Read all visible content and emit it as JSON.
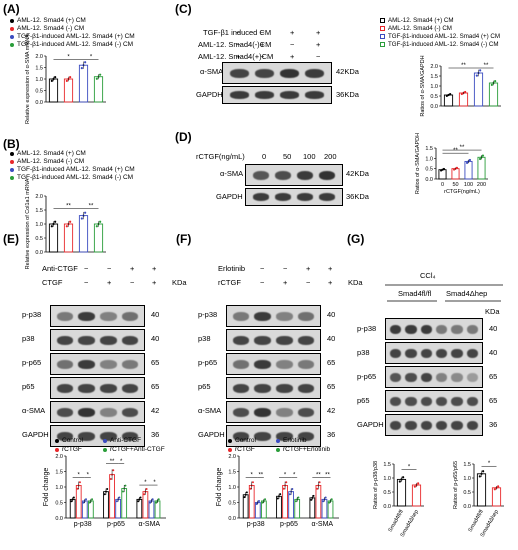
{
  "panels": {
    "A": {
      "label": "(A)",
      "legend": [
        "AML-12. Smad4 (+) CM",
        "AML-12. Smad4 (-) CM",
        "TGF-β1-induced AML-12. Smad4 (+) CM",
        "TGF-β1-induced AML-12. Smad4 (-) CM"
      ],
      "ylabel": "Relative expression of α-SMA mRNA",
      "yticks": [
        "0.0",
        "0.5",
        "1.0",
        "1.5",
        "2.0"
      ],
      "sig": [
        "*",
        "*"
      ]
    },
    "B": {
      "label": "(B)",
      "legend": [
        "AML-12. Smad4 (+) CM",
        "AML-12. Smad4 (-) CM",
        "TGF-β1-induced AML-12. Smad4 (+) CM",
        "TGF-β1-induced AML-12. Smad4 (-) CM"
      ],
      "ylabel": "Relative expression of Col1a1 mRNA",
      "yticks": [
        "0.0",
        "0.5",
        "1.0",
        "1.5",
        "2.0"
      ],
      "sig": [
        "**",
        "**"
      ]
    },
    "C": {
      "label": "(C)",
      "rows": [
        "TGF-β1 induced CM",
        "AML-12. Smad4(-)CM",
        "AML-12. Smad4(+)CM"
      ],
      "signs": [
        [
          "−",
          "−",
          "+",
          "+"
        ],
        [
          "−",
          "+",
          "−",
          "+"
        ],
        [
          "+",
          "−",
          "+",
          "−"
        ]
      ],
      "blots": [
        "α-SMA",
        "GAPDH"
      ],
      "kda": [
        "42KDa",
        "36KDa"
      ],
      "legend": [
        "AML-12. Smad4 (+) CM",
        "AML-12. Smad4 (-) CM",
        "TGF-β1-induced AML-12. Smad4 (+) CM",
        "TGF-β1-induced AML-12. Smad4 (-) CM"
      ],
      "ylabel": "Ratios of α-SMA/GAPDH",
      "yticks": [
        "0.0",
        "0.5",
        "1.0",
        "1.5",
        "2.0"
      ],
      "sig": [
        "**",
        "**"
      ]
    },
    "D": {
      "label": "(D)",
      "row": "rCTGF(ng/mL)",
      "doses": [
        "0",
        "50",
        "100",
        "200"
      ],
      "blots": [
        "α-SMA",
        "GAPDH"
      ],
      "kda": [
        "42KDa",
        "36KDa"
      ],
      "ylabel": "Ratios of α-SMA/GAPDH",
      "yticks": [
        "0.0",
        "0.5",
        "1.0",
        "1.5"
      ],
      "xticks": [
        "0",
        "50",
        "100",
        "200"
      ],
      "xlabel": "rCTGF(ng/mL)",
      "sig": [
        "**",
        "**"
      ]
    },
    "E": {
      "label": "(E)",
      "rows": [
        "Anti-CTGF",
        "CTGF"
      ],
      "signs": [
        [
          "−",
          "−",
          "+",
          "+"
        ],
        [
          "−",
          "+",
          "−",
          "+"
        ]
      ],
      "kda_head": "KDa",
      "blots": [
        "p-p38",
        "p38",
        "p-p65",
        "p65",
        "α-SMA",
        "GAPDH"
      ],
      "kda": [
        "40",
        "40",
        "65",
        "65",
        "42",
        "36"
      ],
      "legend": [
        "Control",
        "Anti-CTGF",
        "rCTGF",
        "rCTGF+Anti-CTGF"
      ],
      "ylabel": "Fold change",
      "yticks": [
        "0.0",
        "0.5",
        "1.0",
        "1.5",
        "2.0"
      ],
      "groups": [
        "p-p38",
        "p-p65",
        "α-SMA"
      ],
      "sig": [
        "*",
        "*",
        "**",
        "*",
        "*",
        "*"
      ]
    },
    "F": {
      "label": "(F)",
      "rows": [
        "Erlotinib",
        "rCTGF"
      ],
      "signs": [
        [
          "−",
          "−",
          "+",
          "+"
        ],
        [
          "−",
          "+",
          "−",
          "+"
        ]
      ],
      "kda_head": "KDa",
      "blots": [
        "p-p38",
        "p38",
        "p-p65",
        "p65",
        "α-SMA",
        "GAPDH"
      ],
      "kda": [
        "40",
        "40",
        "65",
        "65",
        "42",
        "36"
      ],
      "legend": [
        "Control",
        "Erlotinib",
        "rCTGF",
        "rCTGF+Erlotinib"
      ],
      "ylabel": "Fold change",
      "yticks": [
        "0.0",
        "0.5",
        "1.0",
        "1.5",
        "2.0"
      ],
      "groups": [
        "p-p38",
        "p-p65",
        "α-SMA"
      ],
      "sig": [
        "*",
        "**",
        "*",
        "*",
        "**",
        "**"
      ]
    },
    "G": {
      "label": "(G)",
      "treatment": "CCl₄",
      "genotypes": [
        "Smad4fl/fl",
        "Smad4Δhep"
      ],
      "kda_head": "KDa",
      "blots": [
        "p-p38",
        "p38",
        "p-p65",
        "p65",
        "GAPDH"
      ],
      "kda": [
        "40",
        "40",
        "65",
        "65",
        "36"
      ],
      "ylabel1": "Ratios of p-p38/p38",
      "ylabel2": "Ratios of p-p65/p65",
      "yticks1": [
        "0.0",
        "0.5",
        "1.0",
        "1.5"
      ],
      "yticks2": [
        "0.0",
        "0.5",
        "1.0",
        "1.5"
      ],
      "xticks": [
        "Smad4fl/fl",
        "Smad4Δhep"
      ],
      "sig": [
        "*",
        "*"
      ]
    }
  },
  "colors": {
    "black": "#000000",
    "red": "#e8282b",
    "blue": "#3b4cc0",
    "green": "#2a9d3a"
  },
  "chart_data": [
    {
      "panel": "A",
      "type": "bar",
      "categories": [
        "AML-12. Smad4 (+) CM",
        "AML-12. Smad4 (-) CM",
        "TGF-β1-induced AML-12. Smad4 (+) CM",
        "TGF-β1-induced AML-12. Smad4 (-) CM"
      ],
      "values": [
        1.0,
        1.0,
        1.6,
        1.1
      ],
      "ylim": [
        0,
        2.0
      ]
    },
    {
      "panel": "B",
      "type": "bar",
      "categories": [
        "AML-12. Smad4 (+) CM",
        "AML-12. Smad4 (-) CM",
        "TGF-β1-induced AML-12. Smad4 (+) CM",
        "TGF-β1-induced AML-12. Smad4 (-) CM"
      ],
      "values": [
        1.0,
        1.0,
        1.3,
        1.0
      ],
      "ylim": [
        0,
        2.0
      ]
    },
    {
      "panel": "C",
      "type": "bar",
      "categories": [
        "AML-12. Smad4 (+) CM",
        "AML-12. Smad4 (-) CM",
        "TGF-β1-induced AML-12. Smad4 (+) CM",
        "TGF-β1-induced AML-12. Smad4 (-) CM"
      ],
      "values": [
        0.55,
        0.65,
        1.65,
        1.15
      ],
      "ylim": [
        0,
        2.0
      ]
    },
    {
      "panel": "D",
      "type": "bar",
      "categories": [
        "0",
        "50",
        "100",
        "200"
      ],
      "values": [
        0.45,
        0.5,
        0.85,
        1.05
      ],
      "ylim": [
        0,
        1.5
      ]
    },
    {
      "panel": "E",
      "type": "bar",
      "categories": [
        "p-p38",
        "p-p65",
        "α-SMA"
      ],
      "series": [
        {
          "name": "Control",
          "values": [
            0.6,
            0.85,
            0.6
          ]
        },
        {
          "name": "Anti-CTGF",
          "values": [
            0.55,
            0.6,
            0.55
          ]
        },
        {
          "name": "rCTGF",
          "values": [
            1.05,
            1.4,
            0.85
          ]
        },
        {
          "name": "rCTGF+Anti-CTGF",
          "values": [
            0.55,
            0.95,
            0.55
          ]
        }
      ],
      "ylim": [
        0,
        2.0
      ]
    },
    {
      "panel": "F",
      "type": "bar",
      "categories": [
        "p-p38",
        "p-p65",
        "α-SMA"
      ],
      "series": [
        {
          "name": "Control",
          "values": [
            0.75,
            0.7,
            0.65
          ]
        },
        {
          "name": "Erlotinib",
          "values": [
            0.5,
            0.85,
            0.6
          ]
        },
        {
          "name": "rCTGF",
          "values": [
            1.05,
            1.05,
            1.05
          ]
        },
        {
          "name": "rCTGF+Erlotinib",
          "values": [
            0.55,
            0.6,
            0.55
          ]
        }
      ],
      "ylim": [
        0,
        2.0
      ]
    },
    {
      "panel": "G1",
      "type": "bar",
      "categories": [
        "Smad4fl/fl",
        "Smad4Δhep"
      ],
      "values": [
        0.95,
        0.75
      ],
      "ylim": [
        0,
        1.5
      ]
    },
    {
      "panel": "G2",
      "type": "bar",
      "categories": [
        "Smad4fl/fl",
        "Smad4Δhep"
      ],
      "values": [
        1.15,
        0.65
      ],
      "ylim": [
        0,
        1.5
      ]
    }
  ]
}
